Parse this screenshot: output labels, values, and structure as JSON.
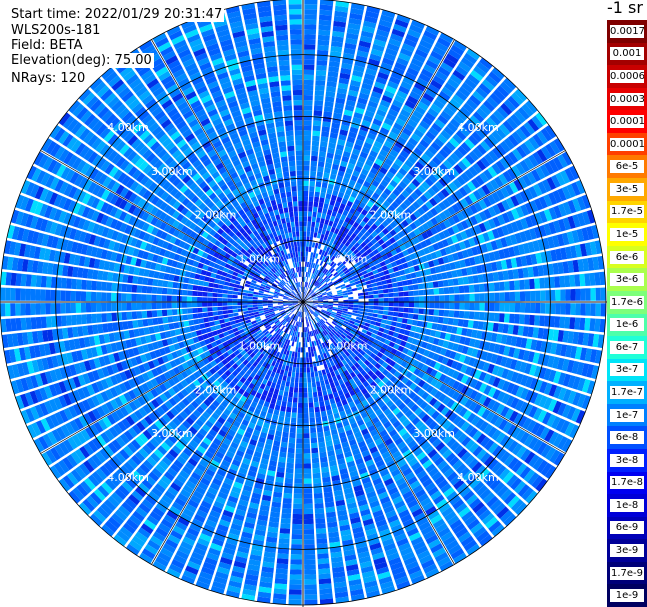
{
  "header": {
    "start_time": "Start time: 2022/01/29 20:31:47",
    "instrument": "WLS200s-181",
    "field": "Field: BETA",
    "elevation": "Elevation(deg): 75.00",
    "nrays": "NRays: 120"
  },
  "colorbar": {
    "unit": "-1 sr",
    "labels": [
      "0.0017",
      "0.001",
      "0.0006",
      "0.0003",
      "0.00017",
      "0.0001",
      "6e-5",
      "3e-5",
      "1.7e-5",
      "1e-5",
      "6e-6",
      "3e-6",
      "1.7e-6",
      "1e-6",
      "6e-7",
      "3e-7",
      "1.7e-7",
      "1e-7",
      "6e-8",
      "3e-8",
      "1.7e-8",
      "1e-8",
      "6e-9",
      "3e-9",
      "1.7e-9",
      "1e-9"
    ],
    "colors": [
      "#7f0000",
      "#a30000",
      "#c80000",
      "#e70000",
      "#ff0000",
      "#ff4000",
      "#ff7a00",
      "#ffa800",
      "#ffd400",
      "#ffff00",
      "#d8ff1f",
      "#aaff4d",
      "#7dff7a",
      "#4dffaa",
      "#1fffd8",
      "#00e4f8",
      "#00b0ff",
      "#0080ff",
      "#0050ff",
      "#0020ff",
      "#0000f1",
      "#0000d8",
      "#0000b8",
      "#000098",
      "#000078",
      "#000060"
    ]
  },
  "chart_data": {
    "type": "polar_ppi",
    "field": "BETA",
    "elevation_deg": 75.0,
    "nrays": 120,
    "range_rings_km": [
      1.0,
      2.0,
      3.0,
      4.0
    ],
    "ring_labels": [
      "1.00km",
      "2.00km",
      "3.00km",
      "4.00km"
    ],
    "max_range_km": 4.9,
    "dominant_values": "mostly 1e-8 to 1e-7 (blue) with scattered 6e-8–3e-7 (light blue/cyan) and darker 1e-8 near center",
    "colorscale_min": "1e-9",
    "colorscale_max": "0.0017",
    "grid": true
  }
}
